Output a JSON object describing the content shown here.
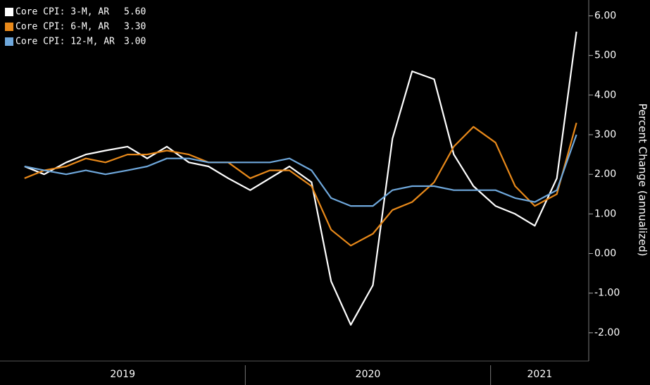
{
  "chart_data": {
    "type": "line",
    "y_label": "Percent Change (annualized)",
    "x": [
      2019.1,
      2019.18,
      2019.27,
      2019.35,
      2019.43,
      2019.52,
      2019.6,
      2019.68,
      2019.77,
      2019.85,
      2019.93,
      2020.02,
      2020.1,
      2020.18,
      2020.27,
      2020.35,
      2020.43,
      2020.52,
      2020.6,
      2020.68,
      2020.77,
      2020.85,
      2020.93,
      2021.02,
      2021.1,
      2021.18,
      2021.27,
      2021.35
    ],
    "series": [
      {
        "name": "Core CPI: 3-M, AR",
        "color": "#ffffff",
        "legend_value": "5.60",
        "values": [
          2.2,
          2.0,
          2.3,
          2.5,
          2.6,
          2.7,
          2.4,
          2.7,
          2.3,
          2.2,
          1.9,
          1.6,
          1.9,
          2.2,
          1.8,
          -0.7,
          -1.8,
          -0.8,
          2.9,
          4.6,
          4.4,
          2.5,
          1.7,
          1.2,
          1.0,
          0.7,
          1.9,
          5.6
        ]
      },
      {
        "name": "Core CPI: 6-M, AR",
        "color": "#e8891a",
        "legend_value": "3.30",
        "values": [
          1.9,
          2.1,
          2.2,
          2.4,
          2.3,
          2.5,
          2.5,
          2.6,
          2.5,
          2.3,
          2.3,
          1.9,
          2.1,
          2.1,
          1.7,
          0.6,
          0.2,
          0.5,
          1.1,
          1.3,
          1.8,
          2.7,
          3.2,
          2.8,
          1.7,
          1.2,
          1.5,
          3.3
        ]
      },
      {
        "name": "Core CPI: 12-M, AR",
        "color": "#6fa8dc",
        "legend_value": "3.00",
        "values": [
          2.2,
          2.1,
          2.0,
          2.1,
          2.0,
          2.1,
          2.2,
          2.4,
          2.4,
          2.3,
          2.3,
          2.3,
          2.3,
          2.4,
          2.1,
          1.4,
          1.2,
          1.2,
          1.6,
          1.7,
          1.7,
          1.6,
          1.6,
          1.6,
          1.4,
          1.3,
          1.6,
          3.0
        ]
      }
    ],
    "xlim": [
      2019.0,
      2021.4
    ],
    "xticks": [
      2019,
      2020,
      2021
    ],
    "ylim": [
      -2.5,
      6.4
    ],
    "yticks": [
      {
        "value": -2,
        "label": "-2.00"
      },
      {
        "value": -1,
        "label": "-1.00"
      },
      {
        "value": 0,
        "label": "0.00"
      },
      {
        "value": 1,
        "label": "1.00"
      },
      {
        "value": 2,
        "label": "2.00"
      },
      {
        "value": 3,
        "label": "3.00"
      },
      {
        "value": 4,
        "label": "4.00"
      },
      {
        "value": 5,
        "label": "5.00"
      },
      {
        "value": 6,
        "label": "6.00"
      }
    ],
    "grid": false,
    "legend": "upper left"
  }
}
